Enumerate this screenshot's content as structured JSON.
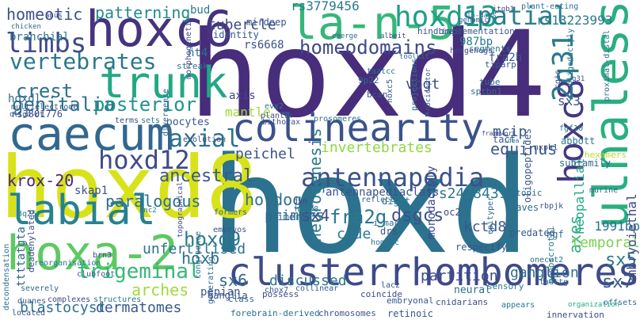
{
  "words": [
    {
      "text": "hoxd4",
      "color": "#472d7b",
      "vertical": false
    },
    {
      "text": "hoxd",
      "color": "#2c728e",
      "vertical": false
    },
    {
      "text": "hoxd8",
      "color": "#d8e219",
      "vertical": false
    },
    {
      "text": "hoxc6",
      "color": "#46337e",
      "vertical": false
    },
    {
      "text": "la-n-5",
      "color": "#35b779",
      "vertical": false
    },
    {
      "text": "caecum",
      "color": "#31688e",
      "vertical": false
    },
    {
      "text": "colinearity",
      "color": "#3b528b",
      "vertical": false
    },
    {
      "text": "clusterrhombomeres",
      "color": "#3e4a89",
      "vertical": false
    },
    {
      "text": "hoxa-2",
      "color": "#5ec962",
      "vertical": false
    },
    {
      "text": "labial",
      "color": "#26828e",
      "vertical": false
    },
    {
      "text": "trunk",
      "color": "#22a884",
      "vertical": false
    },
    {
      "text": "antennapedia",
      "color": "#3b528b",
      "vertical": false
    },
    {
      "text": "ulnaless",
      "color": "#29af7f",
      "vertical": true
    },
    {
      "text": "hoxc8",
      "color": "#443983",
      "vertical": true
    },
    {
      "text": "hoxd13",
      "color": "#1f9e89",
      "vertical": false
    },
    {
      "text": "hoxd12",
      "color": "#3e4a89",
      "vertical": false
    },
    {
      "text": "vertebrates",
      "color": "#2a788e",
      "vertical": false
    },
    {
      "text": "axial",
      "color": "#2c728e",
      "vertical": false
    },
    {
      "text": "spatial",
      "color": "#277f8e",
      "vertical": false
    },
    {
      "text": "limbs",
      "color": "#3e4989",
      "vertical": false
    },
    {
      "text": "2q31",
      "color": "#2a788e",
      "vertical": true
    },
    {
      "text": "homeodomains",
      "color": "#3e4a89",
      "vertical": false
    },
    {
      "text": "genitalia",
      "color": "#2d708e",
      "vertical": false
    },
    {
      "text": "posterior",
      "color": "#20938c",
      "vertical": false
    },
    {
      "text": "crest",
      "color": "#2d708e",
      "vertical": false
    },
    {
      "text": "ancestral",
      "color": "#38598c",
      "vertical": false
    },
    {
      "text": "trigeminal",
      "color": "#35b779",
      "vertical": false
    },
    {
      "text": "hoxd9",
      "color": "#2a788e",
      "vertical": false
    },
    {
      "text": "invertebrates",
      "color": "#90d743",
      "vertical": false
    },
    {
      "text": "paralogous",
      "color": "#2d708e",
      "vertical": false
    },
    {
      "text": "homeotic",
      "color": "#3b528b",
      "vertical": false
    },
    {
      "text": "patterning",
      "color": "#238a8d",
      "vertical": false
    },
    {
      "text": "tubercle",
      "color": "#3e4a89",
      "vertical": false
    },
    {
      "text": "krox-20",
      "color": "#482677",
      "vertical": false
    },
    {
      "text": "hoxb",
      "color": "#2d708e",
      "vertical": false
    },
    {
      "text": "arches",
      "color": "#a0da39",
      "vertical": false
    },
    {
      "text": "dermatomes",
      "color": "#38598c",
      "vertical": false
    },
    {
      "text": "blastocyst",
      "color": "#2d708e",
      "vertical": false
    },
    {
      "text": "neurogenesis",
      "color": "#2a788e",
      "vertical": true
    },
    {
      "text": "fra2g",
      "color": "#2a788e",
      "vertical": false
    },
    {
      "text": "dsgcs",
      "color": "#3b528b",
      "vertical": false
    },
    {
      "text": "equinus",
      "color": "#38598c",
      "vertical": false
    },
    {
      "text": "sx4",
      "color": "#3e4a89",
      "vertical": false
    },
    {
      "text": "sx6",
      "color": "#31688e",
      "vertical": false
    },
    {
      "text": "sx7",
      "color": "#38598c",
      "vertical": false
    },
    {
      "text": "sx5",
      "color": "#2a788e",
      "vertical": false
    },
    {
      "text": "sx3",
      "color": "#3b528b",
      "vertical": false
    },
    {
      "text": "axes",
      "color": "#29af7f",
      "vertical": true
    },
    {
      "text": "kctd8",
      "color": "#38598c",
      "vertical": false
    },
    {
      "text": "ganglion",
      "color": "#2d708e",
      "vertical": false
    },
    {
      "text": "partition",
      "color": "#3e4a89",
      "vertical": false
    },
    {
      "text": "discussed",
      "color": "#2a788e",
      "vertical": false
    },
    {
      "text": "code",
      "color": "#2a788e",
      "vertical": false
    },
    {
      "text": "unfertilised",
      "color": "#2c728e",
      "vertical": false
    },
    {
      "text": "hotdog",
      "color": "#2d708e",
      "vertical": false
    },
    {
      "text": "primers",
      "color": "#31688e",
      "vertical": false
    },
    {
      "text": "peichel",
      "color": "#3b528b",
      "vertical": false
    },
    {
      "text": "mcip",
      "color": "#38598c",
      "vertical": false
    },
    {
      "text": "vogt",
      "color": "#3e4a89",
      "vertical": false
    },
    {
      "text": "rs2428431",
      "color": "#2a788e",
      "vertical": false
    },
    {
      "text": "antennapediaclass",
      "color": "#3b528b",
      "vertical": false
    },
    {
      "text": "temporal",
      "color": "#7ad151",
      "vertical": false
    },
    {
      "text": "1991bp",
      "color": "#2d708e",
      "vertical": false
    },
    {
      "text": "neopallial",
      "color": "#22a884",
      "vertical": true
    },
    {
      "text": "embryoiethal",
      "color": "#3e4a89",
      "vertical": true
    },
    {
      "text": "rs3779456",
      "color": "#2a788e",
      "vertical": false
    },
    {
      "text": "rs13223993",
      "color": "#2a788e",
      "vertical": false
    },
    {
      "text": "rs6668",
      "color": "#3b528b",
      "vertical": false
    },
    {
      "text": "rs3801776",
      "color": "#3e4a89",
      "vertical": false
    },
    {
      "text": "987bp",
      "color": "#2a788e",
      "vertical": false
    },
    {
      "text": "fra2h",
      "color": "#38598c",
      "vertical": false
    },
    {
      "text": "nt4",
      "color": "#2d708e",
      "vertical": false
    },
    {
      "text": "hoxdl",
      "color": "#31688e",
      "vertical": false
    },
    {
      "text": "branchial",
      "color": "#2a788e",
      "vertical": false
    },
    {
      "text": "identity",
      "color": "#38598c",
      "vertical": false
    },
    {
      "text": "mirdeep",
      "color": "#3b528b",
      "vertical": false
    },
    {
      "text": "bud",
      "color": "#2a788e",
      "vertical": false
    },
    {
      "text": "axis",
      "color": "#3e4a89",
      "vertical": false
    },
    {
      "text": "mantle",
      "color": "#a0da39",
      "vertical": false
    },
    {
      "text": "skap1",
      "color": "#3b528b",
      "vertical": false
    },
    {
      "text": "ttttatgta",
      "color": "#31688e",
      "vertical": true
    },
    {
      "text": "ganglia",
      "color": "#3e4a89",
      "vertical": false
    },
    {
      "text": "penian",
      "color": "#38598c",
      "vertical": false
    },
    {
      "text": "primers",
      "color": "#31688e",
      "vertical": false
    },
    {
      "text": "waves",
      "color": "#2d708e",
      "vertical": false
    },
    {
      "text": "digit",
      "color": "#2a788e",
      "vertical": false
    },
    {
      "text": "drs",
      "color": "#3b528b",
      "vertical": false
    },
    {
      "text": "oc2",
      "color": "#3e4a89",
      "vertical": false
    },
    {
      "text": "tact",
      "color": "#38598c",
      "vertical": false
    },
    {
      "text": "ngf",
      "color": "#2d708e",
      "vertical": false
    },
    {
      "text": "abbott",
      "color": "#2a788e",
      "vertical": false
    },
    {
      "text": "subfamily",
      "color": "#31688e",
      "vertical": false
    },
    {
      "text": "hexamers",
      "color": "#b5de2b",
      "vertical": false
    },
    {
      "text": "implementation",
      "color": "#38598c",
      "vertical": false
    },
    {
      "text": "hindbrain",
      "color": "#3b528b",
      "vertical": false
    },
    {
      "text": "segments",
      "color": "#2a788e",
      "vertical": false
    },
    {
      "text": "hedgehogs",
      "color": "#3e4a89",
      "vertical": false
    },
    {
      "text": "tiparp",
      "color": "#38598c",
      "vertical": false
    },
    {
      "text": "tube",
      "color": "#2d708e",
      "vertical": false
    },
    {
      "text": "sptbn1",
      "color": "#31688e",
      "vertical": false
    },
    {
      "text": "bcan",
      "color": "#3b528b",
      "vertical": false
    },
    {
      "text": "evx2",
      "color": "#2a788e",
      "vertical": false
    },
    {
      "text": "plantar",
      "color": "#3e4a89",
      "vertical": false
    },
    {
      "text": "9p22",
      "color": "#31688e",
      "vertical": false
    },
    {
      "text": "taatcc",
      "color": "#2d708e",
      "vertical": false
    },
    {
      "text": "evolution",
      "color": "#3b528b",
      "vertical": false
    },
    {
      "text": "oocytes",
      "color": "#38598c",
      "vertical": false
    },
    {
      "text": "sets",
      "color": "#2a788e",
      "vertical": false
    },
    {
      "text": "terms",
      "color": "#3e4a89",
      "vertical": false
    },
    {
      "text": "multielectrode",
      "color": "#38598c",
      "vertical": false
    },
    {
      "text": "streak",
      "color": "#2d708e",
      "vertical": false
    },
    {
      "text": "fgf10",
      "color": "#2a788e",
      "vertical": false
    },
    {
      "text": "nxph1",
      "color": "#3b528b",
      "vertical": false
    },
    {
      "text": "ectopic",
      "color": "#2d708e",
      "vertical": false
    },
    {
      "text": "murine",
      "color": "#31688e",
      "vertical": false
    },
    {
      "text": "predated",
      "color": "#38598c",
      "vertical": false
    },
    {
      "text": "respecify",
      "color": "#3b528b",
      "vertical": false
    },
    {
      "text": "monodactyly",
      "color": "#3e4a89",
      "vertical": true
    },
    {
      "text": "penoscrotal",
      "color": "#2a788e",
      "vertical": true
    },
    {
      "text": "rbpjk",
      "color": "#3b528b",
      "vertical": false
    },
    {
      "text": "oligopeptides",
      "color": "#38598c",
      "vertical": true
    },
    {
      "text": "onecut2",
      "color": "#2d708e",
      "vertical": false
    },
    {
      "text": "taattg",
      "color": "#31688e",
      "vertical": false
    },
    {
      "text": "sensory",
      "color": "#2a788e",
      "vertical": false
    },
    {
      "text": "coincide",
      "color": "#3e4a89",
      "vertical": false
    },
    {
      "text": "embryonal",
      "color": "#38598c",
      "vertical": false
    },
    {
      "text": "cnidarians",
      "color": "#3b528b",
      "vertical": false
    },
    {
      "text": "neural",
      "color": "#2d708e",
      "vertical": false
    },
    {
      "text": "organization",
      "color": "#22a884",
      "vertical": false
    },
    {
      "text": "innervation",
      "color": "#3e4a89",
      "vertical": false
    },
    {
      "text": "offsets",
      "color": "#31688e",
      "vertical": false
    },
    {
      "text": "appears",
      "color": "#2a788e",
      "vertical": false
    },
    {
      "text": "retinoic",
      "color": "#38598c",
      "vertical": false
    },
    {
      "text": "chromosomes",
      "color": "#3b528b",
      "vertical": false
    },
    {
      "text": "forebrain-derived",
      "color": "#2d708e",
      "vertical": false
    },
    {
      "text": "class",
      "color": "#31688e",
      "vertical": false
    },
    {
      "text": "possess",
      "color": "#3e4a89",
      "vertical": false
    },
    {
      "text": "collinear",
      "color": "#38598c",
      "vertical": false
    },
    {
      "text": "homc-c",
      "color": "#2a788e",
      "vertical": false
    },
    {
      "text": "lacz",
      "color": "#3b528b",
      "vertical": false
    },
    {
      "text": "i-mac",
      "color": "#2d708e",
      "vertical": false
    },
    {
      "text": "reflects",
      "color": "#31688e",
      "vertical": false
    },
    {
      "text": "dyn",
      "color": "#3e4a89",
      "vertical": false
    },
    {
      "text": "hhv-8",
      "color": "#2a788e",
      "vertical": false
    },
    {
      "text": "chox7",
      "color": "#38598c",
      "vertical": false
    },
    {
      "text": "embryos",
      "color": "#3b528b",
      "vertical": false
    },
    {
      "text": "congruence",
      "color": "#2d708e",
      "vertical": true
    },
    {
      "text": "generating",
      "color": "#31688e",
      "vertical": true
    },
    {
      "text": "complexes",
      "color": "#3e4a89",
      "vertical": false
    },
    {
      "text": "structures",
      "color": "#2a788e",
      "vertical": false
    },
    {
      "text": "duanes",
      "color": "#38598c",
      "vertical": false
    },
    {
      "text": "located",
      "color": "#3b528b",
      "vertical": false
    },
    {
      "text": "decondensation",
      "color": "#2d708e",
      "vertical": true
    },
    {
      "text": "severely",
      "color": "#31688e",
      "vertical": false
    },
    {
      "text": "deadenylated",
      "color": "#3e4a89",
      "vertical": true
    },
    {
      "text": "reorganisation",
      "color": "#2a788e",
      "vertical": false
    },
    {
      "text": "clubfoot",
      "color": "#38598c",
      "vertical": false
    },
    {
      "text": "brn3",
      "color": "#3b528b",
      "vertical": false
    },
    {
      "text": "bnc2",
      "color": "#2d708e",
      "vertical": false
    },
    {
      "text": "formers",
      "color": "#31688e",
      "vertical": false
    },
    {
      "text": "topographical",
      "color": "#3e4a89",
      "vertical": true
    },
    {
      "text": "3q25",
      "color": "#2a788e",
      "vertical": false
    },
    {
      "text": "oligo-dt",
      "color": "#38598c",
      "vertical": false
    },
    {
      "text": "bithorax",
      "color": "#3b528b",
      "vertical": false
    },
    {
      "text": "prosomeres",
      "color": "#2d708e",
      "vertical": false
    },
    {
      "text": "divergence",
      "color": "#31688e",
      "vertical": true
    },
    {
      "text": "morphogenetic",
      "color": "#3e4a89",
      "vertical": true
    },
    {
      "text": "projections",
      "color": "#2a788e",
      "vertical": true
    },
    {
      "text": "nociceptor",
      "color": "#38598c",
      "vertical": true
    },
    {
      "text": "hoxc5",
      "color": "#3b528b",
      "vertical": true
    },
    {
      "text": "toolkit",
      "color": "#2d708e",
      "vertical": false
    },
    {
      "text": "chicken",
      "color": "#31688e",
      "vertical": false
    },
    {
      "text": "anus",
      "color": "#3e4a89",
      "vertical": false
    },
    {
      "text": "16-days",
      "color": "#2a788e",
      "vertical": false
    },
    {
      "text": "genomic",
      "color": "#38598c",
      "vertical": false
    },
    {
      "text": "itgb1",
      "color": "#3b528b",
      "vertical": false
    },
    {
      "text": "plant-eating",
      "color": "#2d708e",
      "vertical": false
    },
    {
      "text": "emerge",
      "color": "#31688e",
      "vertical": false
    },
    {
      "text": "albeit",
      "color": "#3e4a89",
      "vertical": false
    },
    {
      "text": "oligodactyly",
      "color": "#2a788e",
      "vertical": true
    },
    {
      "text": "q31",
      "color": "#38598c",
      "vertical": false
    },
    {
      "text": "cgis",
      "color": "#3b528b",
      "vertical": true
    },
    {
      "text": "proximal-distal",
      "color": "#2d708e",
      "vertical": true
    },
    {
      "text": "epityper",
      "color": "#31688e",
      "vertical": true
    },
    {
      "text": "framework",
      "color": "#3e4a89",
      "vertical": false
    },
    {
      "text": "idea",
      "color": "#2a788e",
      "vertical": false
    }
  ]
}
